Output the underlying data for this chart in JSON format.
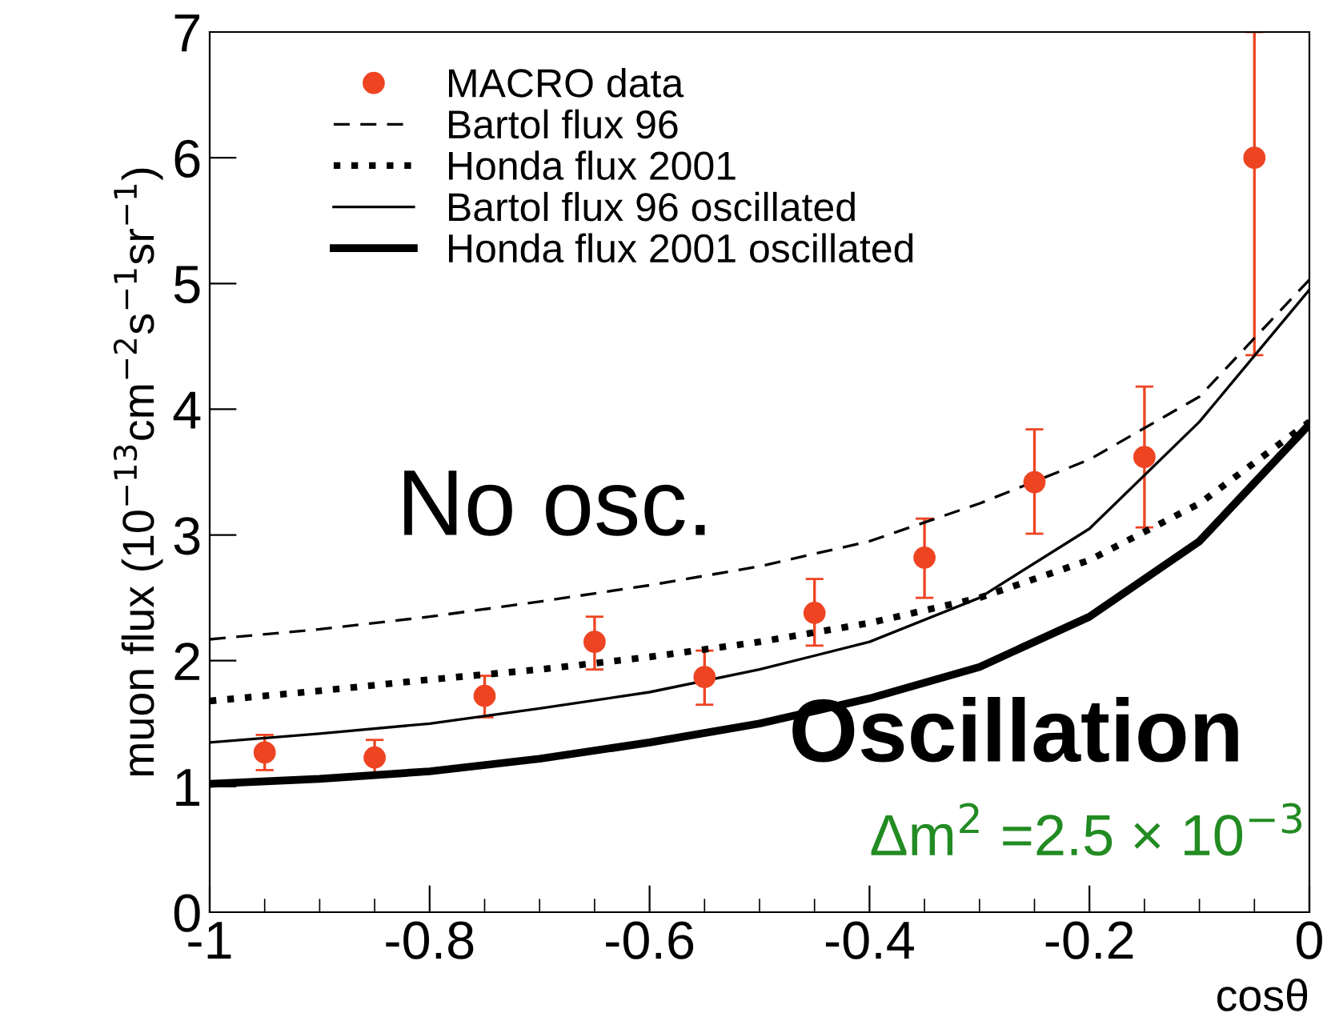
{
  "chart_data": {
    "type": "line",
    "xlabel": "cosθ",
    "ylabel": "muon flux (10$^{−13}$cm$^{−2}$s$^{−1}$sr$^{−1}$)",
    "xlim": [
      -1,
      0
    ],
    "ylim": [
      0,
      7
    ],
    "xticks": [
      -1,
      -0.8,
      -0.6,
      -0.4,
      -0.2,
      0
    ],
    "yticks": [
      0,
      1,
      2,
      3,
      4,
      5,
      6,
      7
    ],
    "legend": "top left",
    "grid": false,
    "annotations": [
      "No osc.",
      "Oscillation",
      "Δm$^{2}$ =2.5 × 10$^{−3}$"
    ],
    "series": [
      {
        "name": "MACRO data",
        "type": "scatter",
        "color": "#ee4422",
        "marker": "circle",
        "x": [
          -0.95,
          -0.85,
          -0.75,
          -0.65,
          -0.55,
          -0.45,
          -0.35,
          -0.25,
          -0.15,
          -0.05
        ],
        "values": [
          1.27,
          1.23,
          1.72,
          2.15,
          1.87,
          2.38,
          2.82,
          3.42,
          3.62,
          6.0
        ],
        "errors": [
          [
            1.13,
            1.41
          ],
          [
            1.09,
            1.37
          ],
          [
            1.55,
            1.88
          ],
          [
            1.93,
            2.35
          ],
          [
            1.65,
            2.08
          ],
          [
            2.12,
            2.65
          ],
          [
            2.5,
            3.13
          ],
          [
            3.01,
            3.84
          ],
          [
            3.06,
            4.18
          ],
          [
            4.43,
            7.0
          ]
        ]
      },
      {
        "name": "Bartol flux 96",
        "color": "#000000",
        "line_style": "dashed",
        "x": [
          -1,
          -0.9,
          -0.8,
          -0.7,
          -0.6,
          -0.5,
          -0.4,
          -0.3,
          -0.2,
          -0.1,
          0
        ],
        "values": [
          2.17,
          2.25,
          2.35,
          2.47,
          2.6,
          2.75,
          2.95,
          3.25,
          3.6,
          4.1,
          5.03
        ]
      },
      {
        "name": "Honda flux 2001",
        "color": "#000000",
        "line_style": "dotted",
        "x": [
          -1,
          -0.9,
          -0.8,
          -0.7,
          -0.6,
          -0.5,
          -0.4,
          -0.3,
          -0.2,
          -0.1,
          0
        ],
        "values": [
          1.68,
          1.76,
          1.85,
          1.93,
          2.03,
          2.15,
          2.3,
          2.5,
          2.8,
          3.25,
          3.9
        ]
      },
      {
        "name": "Bartol flux 96 oscillated",
        "color": "#000000",
        "line_style": "solid",
        "x": [
          -1,
          -0.9,
          -0.8,
          -0.7,
          -0.6,
          -0.5,
          -0.4,
          -0.3,
          -0.2,
          -0.1,
          0
        ],
        "values": [
          1.35,
          1.42,
          1.5,
          1.62,
          1.75,
          1.93,
          2.15,
          2.5,
          3.05,
          3.9,
          4.95
        ]
      },
      {
        "name": "Honda flux 2001 oscillated",
        "color": "#000000",
        "line_style": "solid",
        "x": [
          -1,
          -0.9,
          -0.8,
          -0.7,
          -0.6,
          -0.5,
          -0.4,
          -0.3,
          -0.2,
          -0.1,
          0
        ],
        "values": [
          1.02,
          1.06,
          1.12,
          1.22,
          1.35,
          1.5,
          1.7,
          1.95,
          2.35,
          2.95,
          3.88
        ]
      }
    ]
  }
}
